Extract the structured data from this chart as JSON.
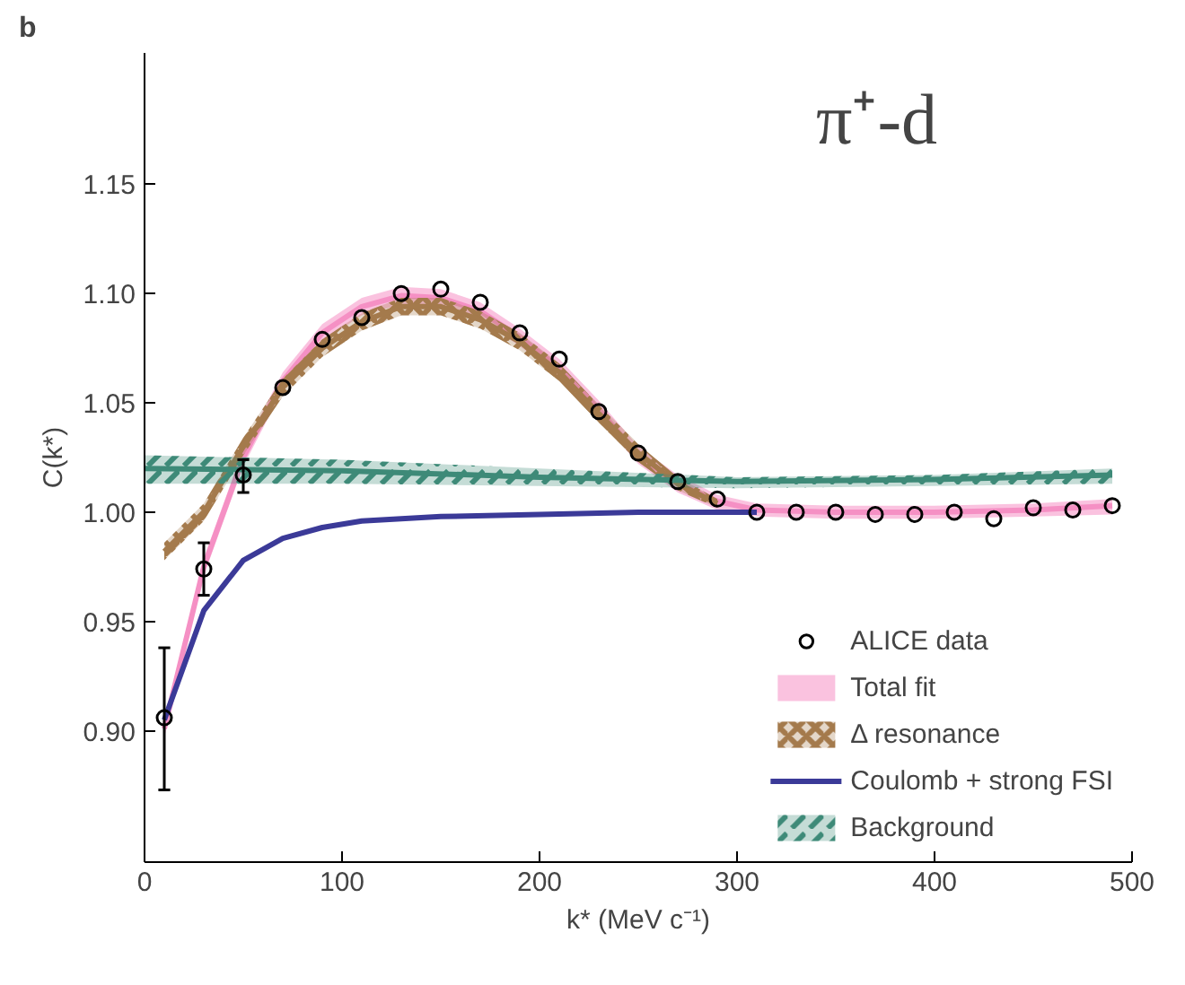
{
  "chart_data": {
    "type": "scatter",
    "annotations": [
      "b",
      "π⁺-d"
    ],
    "xlabel": "k* (MeV c⁻¹)",
    "ylabel": "C(k*)",
    "xlim": [
      0,
      500
    ],
    "xticks": [
      0,
      100,
      200,
      300,
      400,
      500
    ],
    "ylim": [
      0.84,
      1.21
    ],
    "yticks": [
      {
        "value": 0.9,
        "label": "0.90"
      },
      {
        "value": 0.95,
        "label": "0.95"
      },
      {
        "value": 1.0,
        "label": "1.00"
      },
      {
        "value": 1.05,
        "label": "1.05"
      },
      {
        "value": 1.1,
        "label": "1.10"
      },
      {
        "value": 1.15,
        "label": "1.15"
      }
    ],
    "grid": false,
    "legend": "bottom right",
    "series": [
      {
        "name": "Total fit",
        "type": "line",
        "color": "#f590c4",
        "x": [
          10,
          30,
          50,
          70,
          90,
          110,
          130,
          150,
          170,
          190,
          210,
          230,
          250,
          270,
          290,
          310,
          350,
          400,
          450,
          490
        ],
        "values": [
          0.901,
          0.975,
          1.025,
          1.06,
          1.082,
          1.094,
          1.099,
          1.098,
          1.092,
          1.08,
          1.066,
          1.047,
          1.026,
          1.013,
          1.005,
          1.001,
          1.0,
          1.0,
          1.001,
          1.003
        ],
        "lower": [
          0.897,
          0.971,
          1.021,
          1.056,
          1.078,
          1.09,
          1.095,
          1.094,
          1.088,
          1.076,
          1.062,
          1.043,
          1.022,
          1.009,
          1.001,
          0.998,
          0.997,
          0.997,
          0.998,
          0.999
        ],
        "upper": [
          0.905,
          0.979,
          1.029,
          1.064,
          1.086,
          1.098,
          1.103,
          1.102,
          1.096,
          1.084,
          1.07,
          1.051,
          1.03,
          1.017,
          1.008,
          1.004,
          1.003,
          1.003,
          1.004,
          1.006
        ]
      },
      {
        "name": "Δ resonance",
        "type": "line",
        "color": "#a47a4c",
        "x": [
          10,
          30,
          50,
          70,
          90,
          110,
          130,
          150,
          170,
          190,
          210,
          230,
          250,
          270,
          290
        ],
        "values": [
          0.982,
          1.0,
          1.03,
          1.057,
          1.075,
          1.087,
          1.094,
          1.094,
          1.088,
          1.078,
          1.064,
          1.045,
          1.027,
          1.013,
          1.004
        ],
        "lower": [
          0.978,
          0.996,
          1.026,
          1.053,
          1.071,
          1.083,
          1.09,
          1.09,
          1.084,
          1.074,
          1.06,
          1.041,
          1.023,
          1.01,
          1.002
        ],
        "upper": [
          0.986,
          1.004,
          1.034,
          1.061,
          1.079,
          1.091,
          1.098,
          1.098,
          1.092,
          1.082,
          1.068,
          1.049,
          1.031,
          1.016,
          1.006
        ]
      },
      {
        "name": "Coulomb + strong FSI",
        "type": "line",
        "color": "#3b3a98",
        "x": [
          10,
          30,
          50,
          70,
          90,
          110,
          150,
          200,
          250,
          310
        ],
        "values": [
          0.905,
          0.955,
          0.978,
          0.988,
          0.993,
          0.996,
          0.998,
          0.999,
          1.0,
          1.0
        ]
      },
      {
        "name": "Background",
        "type": "line",
        "color": "#3e8a78",
        "x": [
          0,
          100,
          200,
          300,
          400,
          490
        ],
        "values": [
          1.02,
          1.019,
          1.016,
          1.014,
          1.015,
          1.017
        ],
        "lower": [
          1.013,
          1.013,
          1.012,
          1.011,
          1.012,
          1.013
        ],
        "upper": [
          1.026,
          1.024,
          1.02,
          1.016,
          1.017,
          1.02
        ]
      },
      {
        "name": "ALICE data",
        "color": "#000000",
        "marker": "circle",
        "x": [
          10,
          30,
          50,
          70,
          90,
          110,
          130,
          150,
          170,
          190,
          210,
          230,
          250,
          270,
          290,
          310,
          330,
          350,
          370,
          390,
          410,
          430,
          450,
          470,
          490
        ],
        "values": [
          0.906,
          0.974,
          1.017,
          1.057,
          1.079,
          1.089,
          1.1,
          1.102,
          1.096,
          1.082,
          1.07,
          1.046,
          1.027,
          1.014,
          1.006,
          1.0,
          1.0,
          1.0,
          0.999,
          0.999,
          1.0,
          0.997,
          1.002,
          1.001,
          1.003
        ],
        "errors": [
          [
            0.873,
            0.938
          ],
          [
            0.962,
            0.986
          ],
          [
            1.009,
            1.024
          ],
          null,
          null,
          null,
          null,
          null,
          null,
          null,
          null,
          null,
          null,
          null,
          null,
          null,
          null,
          null,
          null,
          null,
          null,
          null,
          null,
          null,
          null
        ]
      }
    ]
  }
}
